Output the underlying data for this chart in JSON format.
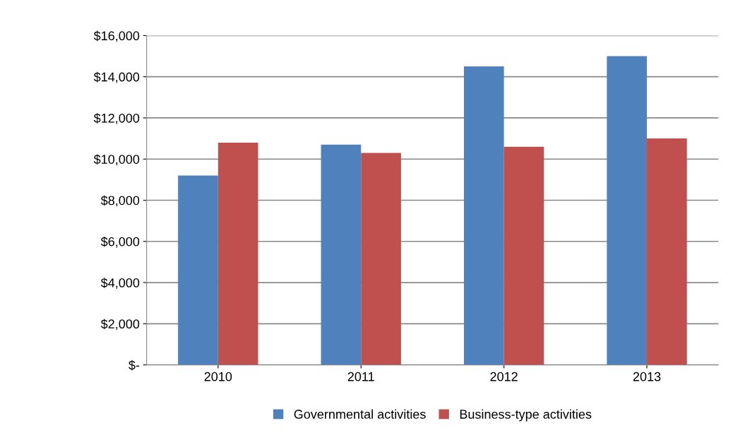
{
  "chart_data": {
    "type": "bar",
    "categories": [
      "2010",
      "2011",
      "2012",
      "2013"
    ],
    "series": [
      {
        "name": "Governmental activities",
        "color": "#4f81bd",
        "values": [
          9200,
          10700,
          14500,
          15000
        ]
      },
      {
        "name": "Business-type activities",
        "color": "#c0504d",
        "values": [
          10800,
          10300,
          10600,
          11000
        ]
      }
    ],
    "ylim": [
      0,
      16000
    ],
    "yticks": [
      {
        "value": 0,
        "label": "$-"
      },
      {
        "value": 2000,
        "label": "$2,000"
      },
      {
        "value": 4000,
        "label": "$4,000"
      },
      {
        "value": 6000,
        "label": "$6,000"
      },
      {
        "value": 8000,
        "label": "$8,000"
      },
      {
        "value": 10000,
        "label": "$10,000"
      },
      {
        "value": 12000,
        "label": "$12,000"
      },
      {
        "value": 14000,
        "label": "$14,000"
      },
      {
        "value": 16000,
        "label": "$16,000"
      }
    ],
    "grid": "y",
    "legend": "bottom"
  }
}
